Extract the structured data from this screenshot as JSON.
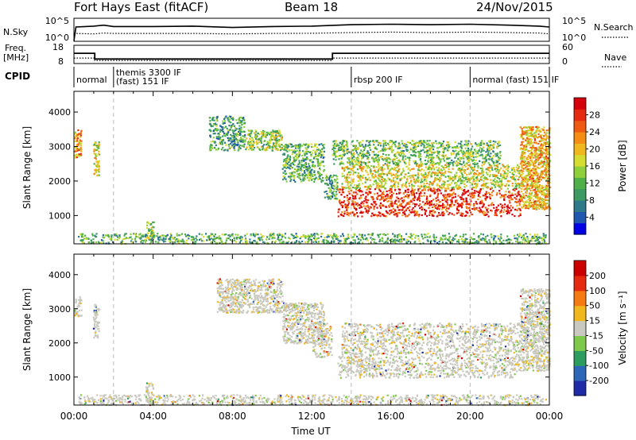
{
  "header": {
    "station": "Fort Hays East (fitACF)",
    "beam": "Beam 18",
    "date": "24/Nov/2015"
  },
  "labels": {
    "nsky": "N.Sky",
    "nsearch": "N.Search",
    "freq_line1": "Freq.",
    "freq_line2": "[MHz]",
    "nave": "Nave",
    "cpid": "CPID",
    "noise_left_ticks": [
      "10^5",
      "10^0"
    ],
    "noise_right_ticks": [
      "10^5",
      "10^0"
    ],
    "freq_left_ticks": [
      "18",
      "8"
    ],
    "freq_right_ticks": [
      "60",
      "0"
    ]
  },
  "cpid": [
    {
      "name": "normal",
      "start": 0.0,
      "end": 2.0
    },
    {
      "name": "themis 3300 IF (fast) 151 IF",
      "start": 2.0,
      "end": 14.0
    },
    {
      "name": "rbsp 200 IF",
      "start": 14.0,
      "end": 20.0
    },
    {
      "name": "normal (fast) 151 IF",
      "start": 20.0,
      "end": 24.0
    }
  ],
  "chart_data": [
    {
      "type": "line",
      "panel": "noise",
      "x_range": [
        0,
        24
      ],
      "log_scale": true,
      "series": [
        {
          "name": "N.Sky"
        },
        {
          "name": "N.Search"
        }
      ],
      "x": [
        0.0,
        0.1,
        1.0,
        1.5,
        2.0,
        4.0,
        6.0,
        8.0,
        10.0,
        12.0,
        14.0,
        16.0,
        18.0,
        20.0,
        22.0,
        23.5,
        24.0
      ],
      "nsky_level": [
        0.02,
        0.62,
        0.66,
        0.7,
        0.64,
        0.64,
        0.66,
        0.6,
        0.64,
        0.66,
        0.72,
        0.74,
        0.72,
        0.74,
        0.7,
        0.66,
        0.62
      ],
      "nsearch_level": [
        0.3,
        0.34,
        0.32,
        0.36,
        0.34,
        0.34,
        0.34,
        0.32,
        0.34,
        0.35,
        0.38,
        0.4,
        0.38,
        0.4,
        0.38,
        0.36,
        0.32
      ]
    },
    {
      "type": "line",
      "panel": "frequency",
      "x_range": [
        0,
        24
      ],
      "y_range": [
        8,
        18
      ],
      "nave_range": [
        0,
        60
      ],
      "series": [
        {
          "name": "Freq."
        },
        {
          "name": "Nave"
        }
      ],
      "freq_steps": [
        {
          "start": 0.0,
          "end": 1.05,
          "mhz": 13.6
        },
        {
          "start": 1.05,
          "end": 13.05,
          "mhz": 10.5
        },
        {
          "start": 13.05,
          "end": 24.0,
          "mhz": 13.6
        }
      ],
      "nave_steps": [
        {
          "start": 0.0,
          "end": 1.05,
          "nave": 18
        },
        {
          "start": 1.05,
          "end": 13.05,
          "nave": 10
        },
        {
          "start": 13.05,
          "end": 24.0,
          "nave": 18
        }
      ]
    },
    {
      "type": "heatmap",
      "panel": "power",
      "xlabel": "",
      "ylabel": "Slant Range [km]",
      "x_range": [
        0,
        24
      ],
      "y_range": [
        180,
        4600
      ],
      "y_ticks": [
        1000,
        2000,
        3000,
        4000
      ],
      "colorbar": {
        "label": "Power [dB]",
        "ticks": [
          "28",
          "24",
          "20",
          "16",
          "12",
          "8",
          "4"
        ],
        "colors": [
          "#0000e6",
          "#1e56b0",
          "#2f7a8a",
          "#3c9a62",
          "#4fb04a",
          "#8ecf3c",
          "#d6dc30",
          "#f0b81c",
          "#f58c14",
          "#ef5a12",
          "#e52a10",
          "#d4000c"
        ]
      },
      "echo_regions": [
        {
          "t0": 0.0,
          "t1": 0.35,
          "r0": 2700,
          "r1": 3500,
          "level": 0.7
        },
        {
          "t0": 0.95,
          "t1": 1.25,
          "r0": 2150,
          "r1": 3150,
          "level": 0.55
        },
        {
          "t0": 3.6,
          "t1": 4.0,
          "r0": 300,
          "r1": 850,
          "level": 0.5
        },
        {
          "t0": 6.8,
          "t1": 8.6,
          "r0": 2900,
          "r1": 3900,
          "level": 0.3
        },
        {
          "t0": 8.6,
          "t1": 10.5,
          "r0": 2900,
          "r1": 3500,
          "level": 0.45
        },
        {
          "t0": 10.5,
          "t1": 12.6,
          "r0": 2000,
          "r1": 3100,
          "level": 0.35
        },
        {
          "t0": 12.6,
          "t1": 13.3,
          "r0": 1500,
          "r1": 2200,
          "level": 0.3
        },
        {
          "t0": 13.3,
          "t1": 22.5,
          "r0": 1000,
          "r1": 1800,
          "level": 0.9
        },
        {
          "t0": 13.5,
          "t1": 22.5,
          "r0": 1800,
          "r1": 2500,
          "level": 0.55
        },
        {
          "t0": 13.0,
          "t1": 21.5,
          "r0": 2500,
          "r1": 3200,
          "level": 0.4
        },
        {
          "t0": 22.5,
          "t1": 24.0,
          "r0": 1200,
          "r1": 3600,
          "level": 0.65
        },
        {
          "t0": 0.2,
          "t1": 23.8,
          "r0": 200,
          "r1": 500,
          "level": 0.35
        }
      ]
    },
    {
      "type": "heatmap",
      "panel": "velocity",
      "xlabel": "Time UT",
      "ylabel": "Slant Range [km]",
      "x_range": [
        0,
        24
      ],
      "y_range": [
        180,
        4600
      ],
      "y_ticks": [
        1000,
        2000,
        3000,
        4000
      ],
      "x_ticks": [
        "00:00",
        "04:00",
        "08:00",
        "12:00",
        "16:00",
        "20:00",
        "00:00"
      ],
      "colorbar": {
        "label": "Velocity [m s⁻¹]",
        "ticks": [
          "200",
          "100",
          "50",
          "15",
          "-15",
          "-50",
          "-100",
          "-200"
        ],
        "colors": [
          "#1f2aa8",
          "#2f67b8",
          "#2d9c5f",
          "#7ec84a",
          "#c9c9c0",
          "#f0b81c",
          "#f57a12",
          "#e52a10",
          "#cc0000"
        ]
      },
      "echo_regions": [
        {
          "t0": 0.0,
          "t1": 0.35,
          "r0": 2800,
          "r1": 3400,
          "level": 0.4
        },
        {
          "t0": 0.95,
          "t1": 1.25,
          "r0": 2150,
          "r1": 3150,
          "level": 0.45
        },
        {
          "t0": 3.6,
          "t1": 4.0,
          "r0": 300,
          "r1": 850,
          "level": 0.4
        },
        {
          "t0": 7.2,
          "t1": 10.5,
          "r0": 2900,
          "r1": 3900,
          "level": 0.4
        },
        {
          "t0": 10.5,
          "t1": 12.6,
          "r0": 2000,
          "r1": 3200,
          "level": 0.4
        },
        {
          "t0": 12.0,
          "t1": 13.0,
          "r0": 1600,
          "r1": 2600,
          "level": 0.2
        },
        {
          "t0": 13.3,
          "t1": 22.5,
          "r0": 1000,
          "r1": 1800,
          "level": 0.45
        },
        {
          "t0": 13.5,
          "t1": 22.5,
          "r0": 1800,
          "r1": 2600,
          "level": 0.45
        },
        {
          "t0": 22.5,
          "t1": 24.0,
          "r0": 1200,
          "r1": 3600,
          "level": 0.5
        },
        {
          "t0": 0.2,
          "t1": 23.8,
          "r0": 200,
          "r1": 500,
          "level": 0.55
        }
      ]
    }
  ]
}
